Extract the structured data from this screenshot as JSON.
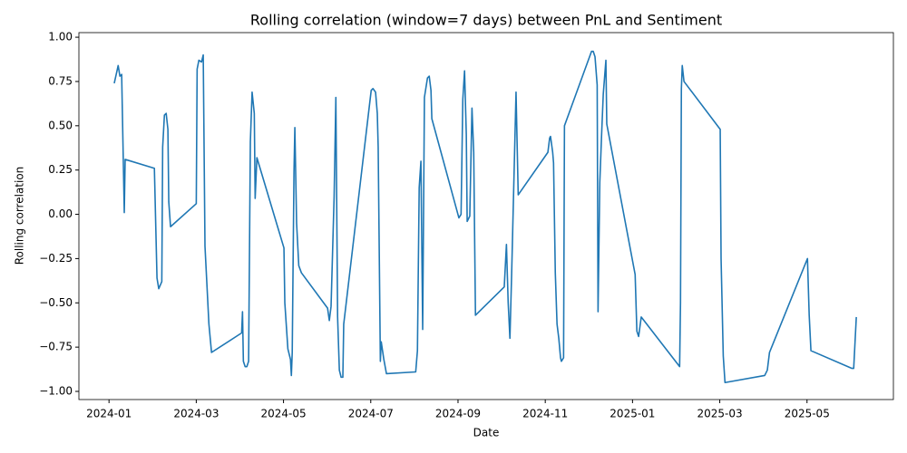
{
  "chart_data": {
    "type": "line",
    "title": "Rolling correlation (window=7 days) between PnL and Sentiment",
    "x_label": "Date",
    "y_label": "Rolling correlation",
    "color": "#1f77b4",
    "x": [
      0.12,
      0.21,
      0.25,
      0.29,
      0.35,
      0.37,
      1.04,
      1.1,
      1.14,
      1.21,
      1.23,
      1.27,
      1.31,
      1.35,
      1.37,
      1.41,
      2.0,
      2.02,
      2.06,
      2.12,
      2.16,
      2.2,
      2.29,
      2.35,
      3.04,
      3.06,
      3.08,
      3.12,
      3.16,
      3.2,
      3.24,
      3.28,
      3.33,
      3.35,
      3.39,
      4.01,
      4.03,
      4.1,
      4.16,
      4.18,
      4.2,
      4.24,
      4.26,
      4.3,
      4.35,
      4.41,
      5.01,
      5.05,
      5.09,
      5.16,
      5.2,
      5.24,
      5.28,
      5.32,
      5.36,
      5.38,
      6.01,
      6.05,
      6.11,
      6.15,
      6.17,
      6.22,
      6.24,
      6.3,
      6.36,
      7.03,
      7.07,
      7.11,
      7.15,
      7.19,
      7.23,
      7.3,
      7.34,
      7.38,
      7.4,
      8.02,
      8.07,
      8.11,
      8.15,
      8.19,
      8.21,
      8.27,
      8.32,
      8.36,
      8.4,
      9.06,
      9.11,
      9.15,
      9.19,
      9.23,
      9.33,
      9.38,
      10.06,
      10.1,
      10.12,
      10.17,
      10.19,
      10.23,
      10.27,
      10.31,
      10.35,
      10.37,
      10.42,
      10.44,
      11.06,
      11.1,
      11.14,
      11.19,
      11.21,
      11.25,
      11.29,
      11.33,
      11.39,
      11.41,
      12.06,
      12.1,
      12.14,
      12.2,
      13.08,
      13.1,
      13.12,
      13.14,
      13.18,
      14.01,
      14.03,
      14.08,
      14.12,
      15.03,
      15.09,
      15.14,
      16.01,
      16.05,
      16.09,
      17.03,
      17.07,
      17.13
    ],
    "values": [
      0.74,
      0.84,
      0.78,
      0.79,
      0.01,
      0.31,
      0.26,
      -0.36,
      -0.42,
      -0.38,
      0.38,
      0.56,
      0.57,
      0.48,
      0.07,
      -0.07,
      0.06,
      0.82,
      0.87,
      0.86,
      0.9,
      -0.18,
      -0.62,
      -0.78,
      -0.67,
      -0.55,
      -0.83,
      -0.86,
      -0.86,
      -0.83,
      0.41,
      0.69,
      0.57,
      0.09,
      0.32,
      -0.19,
      -0.5,
      -0.76,
      -0.82,
      -0.91,
      -0.78,
      0.24,
      0.49,
      -0.05,
      -0.29,
      -0.33,
      -0.53,
      -0.6,
      -0.52,
      0.1,
      0.66,
      -0.58,
      -0.88,
      -0.92,
      -0.92,
      -0.62,
      0.7,
      0.71,
      0.69,
      0.57,
      0.38,
      -0.83,
      -0.72,
      -0.82,
      -0.9,
      -0.89,
      -0.77,
      0.15,
      0.3,
      -0.65,
      0.66,
      0.77,
      0.78,
      0.7,
      0.54,
      -0.02,
      0.0,
      0.65,
      0.81,
      0.45,
      -0.04,
      -0.01,
      0.6,
      0.35,
      -0.57,
      -0.41,
      -0.17,
      -0.5,
      -0.7,
      -0.33,
      0.69,
      0.11,
      0.35,
      0.43,
      0.44,
      0.35,
      0.29,
      -0.33,
      -0.62,
      -0.7,
      -0.81,
      -0.83,
      -0.81,
      0.5,
      0.92,
      0.92,
      0.89,
      0.73,
      -0.55,
      0.18,
      0.44,
      0.68,
      0.87,
      0.51,
      -0.34,
      -0.66,
      -0.69,
      -0.58,
      -0.86,
      -0.5,
      0.71,
      0.84,
      0.75,
      0.48,
      -0.25,
      -0.8,
      -0.95,
      -0.91,
      -0.88,
      -0.78,
      -0.25,
      -0.57,
      -0.77,
      -0.87,
      -0.87,
      -0.58
    ],
    "xlim": [
      -0.69,
      17.98
    ],
    "xticks": [
      {
        "value": 0,
        "label": "2024-01"
      },
      {
        "value": 2,
        "label": "2024-03"
      },
      {
        "value": 4,
        "label": "2024-05"
      },
      {
        "value": 6,
        "label": "2024-07"
      },
      {
        "value": 8,
        "label": "2024-09"
      },
      {
        "value": 10,
        "label": "2024-11"
      },
      {
        "value": 12,
        "label": "2025-01"
      },
      {
        "value": 14,
        "label": "2025-03"
      },
      {
        "value": 16,
        "label": "2025-05"
      }
    ],
    "ylim": [
      -1.046,
      1.026
    ],
    "yticks": [
      {
        "value": -1,
        "label": "−1.00"
      },
      {
        "value": -0.75,
        "label": "−0.75"
      },
      {
        "value": -0.5,
        "label": "−0.50"
      },
      {
        "value": -0.25,
        "label": "−0.25"
      },
      {
        "value": 0,
        "label": "0.00"
      },
      0.25,
      {
        "value": 0.5,
        "label": "0.50"
      },
      0.75,
      {
        "value": 1,
        "label": "1.00"
      }
    ],
    "grid": false
  }
}
